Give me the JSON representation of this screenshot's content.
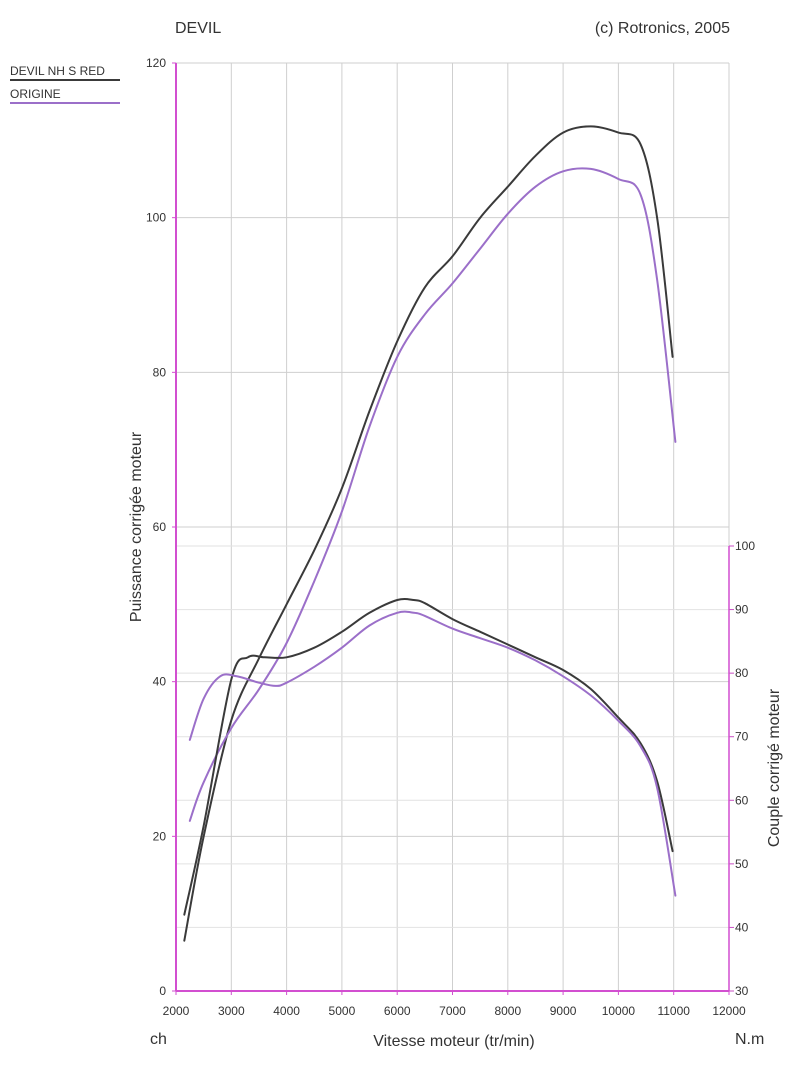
{
  "header": {
    "left": "DEVIL",
    "right": "(c) Rotronics, 2005"
  },
  "units": {
    "left": "ch",
    "right": "N.m"
  },
  "chart_data": {
    "type": "line",
    "xlabel": "Vitesse moteur (tr/min)",
    "ylabel": "Puissance corrigée moteur",
    "y2label": "Couple corrigé moteur",
    "xlim": [
      2000,
      12000
    ],
    "ylim": [
      0,
      120
    ],
    "y2lim": [
      30,
      100
    ],
    "xticks": [
      2000,
      3000,
      4000,
      5000,
      6000,
      7000,
      8000,
      9000,
      10000,
      11000,
      12000
    ],
    "yticks": [
      0,
      20,
      40,
      60,
      80,
      100,
      120
    ],
    "y2ticks": [
      30,
      40,
      50,
      60,
      70,
      80,
      90,
      100
    ],
    "grid": true,
    "legend": "top-left",
    "legend_entries": [
      {
        "name": "DEVIL NH S RED",
        "color": "#3a3a3a"
      },
      {
        "name": "ORIGINE",
        "color": "#9b6fc9"
      }
    ],
    "series": [
      {
        "name": "DEVIL NH S RED",
        "quantity": "power",
        "axis": "left",
        "color": "#3a3a3a",
        "x": [
          2150,
          2500,
          3000,
          3500,
          4000,
          4500,
          5000,
          5500,
          6000,
          6500,
          7000,
          7500,
          8000,
          8500,
          9000,
          9500,
          10000,
          10400,
          10700,
          10980
        ],
        "y": [
          6.5,
          20,
          35,
          43,
          50,
          57,
          65,
          75,
          84,
          91,
          95,
          100,
          104,
          108,
          111,
          111.8,
          111,
          109.5,
          100,
          82
        ]
      },
      {
        "name": "ORIGINE",
        "quantity": "power",
        "axis": "left",
        "color": "#9b6fc9",
        "x": [
          2250,
          2500,
          3000,
          3500,
          4000,
          4500,
          5000,
          5500,
          6000,
          6500,
          7000,
          7500,
          8000,
          8500,
          9000,
          9500,
          10000,
          10400,
          10700,
          11030
        ],
        "y": [
          22,
          27,
          34,
          39,
          45,
          53,
          62,
          73,
          82,
          87.5,
          91.5,
          96,
          100.5,
          104,
          106,
          106.3,
          105,
          103,
          92,
          71
        ]
      },
      {
        "name": "DEVIL NH S RED",
        "quantity": "torque",
        "axis": "right",
        "color": "#3a3a3a",
        "x": [
          2150,
          2500,
          3000,
          3300,
          3600,
          4000,
          4500,
          5000,
          5500,
          6000,
          6300,
          6500,
          7000,
          7500,
          8000,
          8500,
          9000,
          9500,
          10000,
          10400,
          10700,
          10980
        ],
        "y": [
          42,
          56,
          79,
          82.5,
          82.5,
          82.5,
          84,
          86.5,
          89.5,
          91.5,
          91.5,
          91,
          88.5,
          86.5,
          84.5,
          82.5,
          80.5,
          77.5,
          73,
          69,
          63,
          52
        ]
      },
      {
        "name": "ORIGINE",
        "quantity": "torque",
        "axis": "right",
        "color": "#9b6fc9",
        "x": [
          2250,
          2500,
          2800,
          3100,
          3500,
          3800,
          4000,
          4500,
          5000,
          5500,
          6000,
          6300,
          6500,
          7000,
          7500,
          8000,
          8500,
          9000,
          9500,
          10000,
          10400,
          10700,
          11030
        ],
        "y": [
          69.5,
          76,
          79.5,
          79.5,
          78.5,
          78,
          78.5,
          81,
          84,
          87.5,
          89.5,
          89.5,
          89,
          87,
          85.5,
          84,
          82,
          79.5,
          76.5,
          72.5,
          68.5,
          62,
          45
        ]
      }
    ]
  }
}
